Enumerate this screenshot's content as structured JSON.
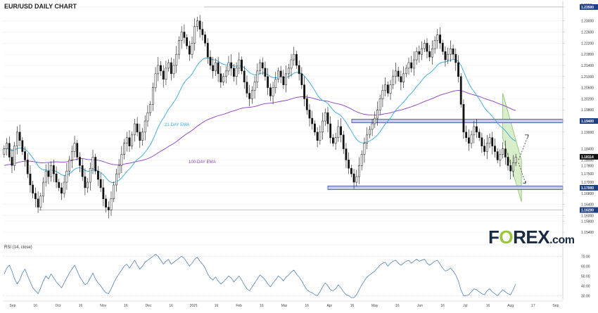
{
  "title": "EUR/USD DAILY CHART",
  "logo": {
    "brand_pre": "F",
    "brand_o": "O",
    "brand_post": "REX",
    "suffix": ".com"
  },
  "labels": {
    "ema21": "21-DAY EMA",
    "ema100": "100-DAY EMA",
    "rsi": "RSI (14, close)"
  },
  "colors": {
    "up": "#ffffff",
    "down": "#111111",
    "ema21": "#33a8d8",
    "ema100": "#8a3dbf",
    "hline": "#3a4a9a",
    "channel": "#c9e7b5",
    "rsi": "#3a72b4",
    "badge": "#1e3f82"
  },
  "chart_data": [
    {
      "type": "candlestick",
      "title": "EUR/USD DAILY CHART",
      "x": [
        "Sep",
        "16",
        "Oct",
        "16",
        "Nov",
        "16",
        "Dec",
        "16",
        "2021",
        "16",
        "Feb",
        "16",
        "Mar",
        "16",
        "Apr",
        "16",
        "May",
        "16",
        "Jun",
        "16",
        "Jul",
        "16",
        "Aug",
        "17",
        "Sep"
      ],
      "ylim": [
        1.15,
        1.236
      ],
      "yticks": [
        "1.15400",
        "1.15800",
        "1.16000",
        "1.16400",
        "1.16800",
        "1.17200",
        "1.17500",
        "1.17800",
        "1.18000",
        "1.18400",
        "1.19000",
        "1.19400",
        "1.19800",
        "1.20200",
        "1.20600",
        "1.21000",
        "1.21400",
        "1.21800",
        "1.22200",
        "1.22600",
        "1.23000",
        "1.23500"
      ],
      "y_tick_values": [
        1.154,
        1.158,
        1.16,
        1.164,
        1.168,
        1.172,
        1.175,
        1.178,
        1.18,
        1.184,
        1.19,
        1.194,
        1.198,
        1.202,
        1.206,
        1.21,
        1.214,
        1.218,
        1.222,
        1.226,
        1.23,
        1.235
      ],
      "badges": [
        "1.23500",
        "1.19400",
        "1.18114",
        "1.17000",
        "1.16200"
      ],
      "badge_values": [
        1.235,
        1.194,
        1.18114,
        1.17,
        1.162
      ],
      "top_tick": "1.2350",
      "horizontal_levels": [
        1.235,
        1.194,
        1.17,
        1.162
      ],
      "annotations": [
        "21-DAY EMA",
        "100-DAY EMA"
      ],
      "closes": [
        1.184,
        1.186,
        1.181,
        1.178,
        1.185,
        1.19,
        1.187,
        1.183,
        1.18,
        1.175,
        1.171,
        1.168,
        1.166,
        1.163,
        1.167,
        1.172,
        1.176,
        1.174,
        1.178,
        1.175,
        1.172,
        1.17,
        1.168,
        1.172,
        1.176,
        1.18,
        1.183,
        1.186,
        1.181,
        1.178,
        1.174,
        1.17,
        1.172,
        1.177,
        1.181,
        1.176,
        1.173,
        1.17,
        1.166,
        1.163,
        1.162,
        1.166,
        1.171,
        1.175,
        1.178,
        1.182,
        1.186,
        1.188,
        1.185,
        1.189,
        1.193,
        1.19,
        1.187,
        1.19,
        1.194,
        1.197,
        1.2,
        1.206,
        1.211,
        1.214,
        1.212,
        1.209,
        1.213,
        1.215,
        1.211,
        1.214,
        1.218,
        1.223,
        1.226,
        1.224,
        1.221,
        1.218,
        1.222,
        1.228,
        1.23,
        1.227,
        1.225,
        1.222,
        1.217,
        1.214,
        1.212,
        1.215,
        1.211,
        1.208,
        1.21,
        1.212,
        1.215,
        1.213,
        1.21,
        1.213,
        1.216,
        1.212,
        1.208,
        1.204,
        1.202,
        1.205,
        1.208,
        1.212,
        1.215,
        1.213,
        1.21,
        1.206,
        1.203,
        1.206,
        1.209,
        1.212,
        1.21,
        1.207,
        1.211,
        1.213,
        1.216,
        1.218,
        1.214,
        1.211,
        1.207,
        1.202,
        1.198,
        1.195,
        1.193,
        1.19,
        1.187,
        1.19,
        1.194,
        1.197,
        1.193,
        1.188,
        1.186,
        1.188,
        1.192,
        1.189,
        1.184,
        1.18,
        1.177,
        1.175,
        1.172,
        1.174,
        1.178,
        1.182,
        1.186,
        1.189,
        1.191,
        1.193,
        1.195,
        1.198,
        1.202,
        1.205,
        1.207,
        1.204,
        1.207,
        1.21,
        1.212,
        1.21,
        1.208,
        1.211,
        1.213,
        1.215,
        1.213,
        1.216,
        1.219,
        1.218,
        1.22,
        1.222,
        1.219,
        1.217,
        1.22,
        1.223,
        1.225,
        1.222,
        1.219,
        1.216,
        1.218,
        1.22,
        1.218,
        1.215,
        1.21,
        1.2,
        1.19,
        1.188,
        1.186,
        1.189,
        1.192,
        1.19,
        1.188,
        1.185,
        1.183,
        1.186,
        1.188,
        1.185,
        1.183,
        1.18,
        1.182,
        1.184,
        1.181,
        1.178,
        1.176,
        1.179,
        1.181
      ]
    },
    {
      "type": "line",
      "title": "RSI (14, close)",
      "yticks": [
        "70.00",
        "60.00",
        "50.00",
        "40.00",
        "30.00"
      ],
      "y_tick_values": [
        70,
        60,
        50,
        40,
        30
      ],
      "ylim": [
        26,
        76
      ],
      "values": [
        52,
        58,
        61,
        55,
        47,
        42,
        46,
        53,
        57,
        50,
        44,
        38,
        35,
        32,
        38,
        45,
        50,
        47,
        52,
        48,
        44,
        41,
        38,
        43,
        48,
        53,
        57,
        61,
        55,
        49,
        45,
        41,
        43,
        48,
        53,
        47,
        43,
        40,
        36,
        33,
        32,
        37,
        43,
        48,
        52,
        56,
        60,
        62,
        58,
        62,
        66,
        61,
        57,
        60,
        64,
        66,
        68,
        70,
        72,
        70,
        66,
        62,
        65,
        67,
        62,
        64,
        66,
        68,
        70,
        68,
        64,
        60,
        63,
        67,
        69,
        65,
        62,
        58,
        52,
        48,
        46,
        49,
        45,
        42,
        44,
        47,
        50,
        48,
        44,
        47,
        50,
        46,
        41,
        37,
        35,
        39,
        43,
        47,
        51,
        49,
        46,
        42,
        39,
        43,
        46,
        50,
        48,
        45,
        49,
        51,
        54,
        56,
        52,
        49,
        45,
        40,
        36,
        34,
        33,
        31,
        30,
        34,
        39,
        43,
        40,
        36,
        35,
        37,
        41,
        38,
        34,
        31,
        30,
        28,
        28,
        31,
        36,
        41,
        45,
        49,
        51,
        53,
        55,
        58,
        61,
        63,
        64,
        60,
        63,
        65,
        66,
        63,
        61,
        63,
        65,
        66,
        63,
        65,
        67,
        65,
        66,
        67,
        63,
        61,
        63,
        65,
        66,
        62,
        58,
        55,
        56,
        58,
        55,
        51,
        45,
        36,
        30,
        30,
        31,
        34,
        37,
        36,
        34,
        32,
        31,
        35,
        37,
        34,
        32,
        30,
        33,
        36,
        34,
        32,
        31,
        36,
        42
      ]
    }
  ]
}
